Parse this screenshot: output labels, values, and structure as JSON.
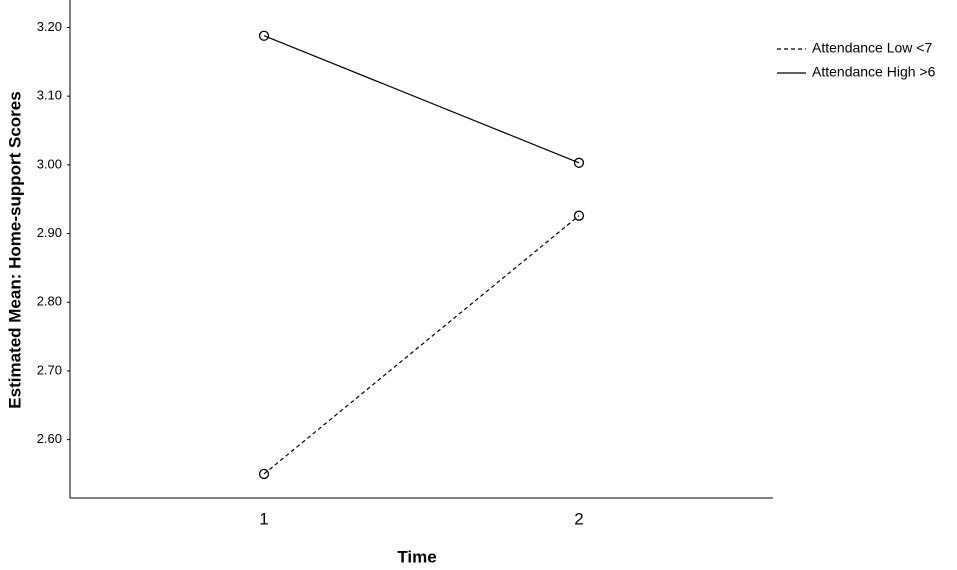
{
  "chart_data": {
    "type": "line",
    "x_label": "Time",
    "y_label": "Estimated Mean: Home-support Scores",
    "categories": [
      "1",
      "2"
    ],
    "series": [
      {
        "name": "Attendance Low <7",
        "color": "#000000",
        "style": "dashed",
        "values": [
          2.55,
          2.926
        ]
      },
      {
        "name": "Attendance High >6",
        "color": "#000000",
        "style": "solid",
        "values": [
          3.188,
          3.003
        ]
      }
    ],
    "ylim": [
      2.515,
      3.24
    ],
    "yticks": [
      {
        "value": 2.6,
        "label": "2.60"
      },
      {
        "value": 2.7,
        "label": "2.70"
      },
      {
        "value": 2.8,
        "label": "2.80"
      },
      {
        "value": 2.9,
        "label": "2.90"
      },
      {
        "value": 3.0,
        "label": "3.00"
      },
      {
        "value": 3.1,
        "label": "3.10"
      },
      {
        "value": 3.2,
        "label": "3.20"
      }
    ],
    "grid": false,
    "legend": "top-right"
  }
}
